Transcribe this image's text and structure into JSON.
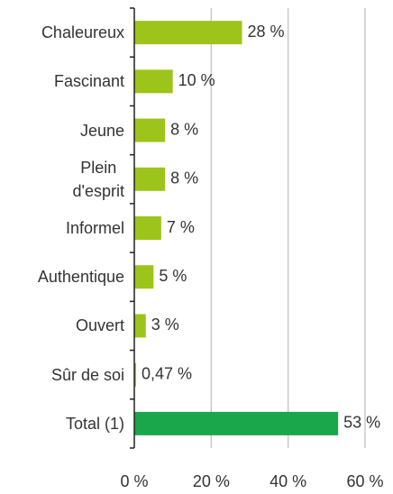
{
  "chart_data": {
    "type": "barh",
    "categories": [
      "Chaleureux",
      "Fascinant",
      "Jeune",
      "Plein\nd'esprit",
      "Informel",
      "Authentique",
      "Ouvert",
      "Sûr de soi",
      "Total (1)"
    ],
    "values": [
      28,
      10,
      8,
      8,
      7,
      5,
      3,
      0.47,
      53
    ],
    "value_labels": [
      "28 %",
      "10 %",
      "8 %",
      "8 %",
      "7 %",
      "5 %",
      "3 %",
      "0,47 %",
      "53 %"
    ],
    "colors": [
      "#9dc41a",
      "#9dc41a",
      "#9dc41a",
      "#9dc41a",
      "#9dc41a",
      "#9dc41a",
      "#9dc41a",
      "#9dc41a",
      "#1aa64a"
    ],
    "xlim": [
      0,
      60
    ],
    "xticks": [
      {
        "value": 0,
        "label": "0 %"
      },
      {
        "value": 20,
        "label": "20 %"
      },
      {
        "value": 40,
        "label": "40 %"
      },
      {
        "value": 60,
        "label": "60 %"
      }
    ],
    "grid": true
  }
}
